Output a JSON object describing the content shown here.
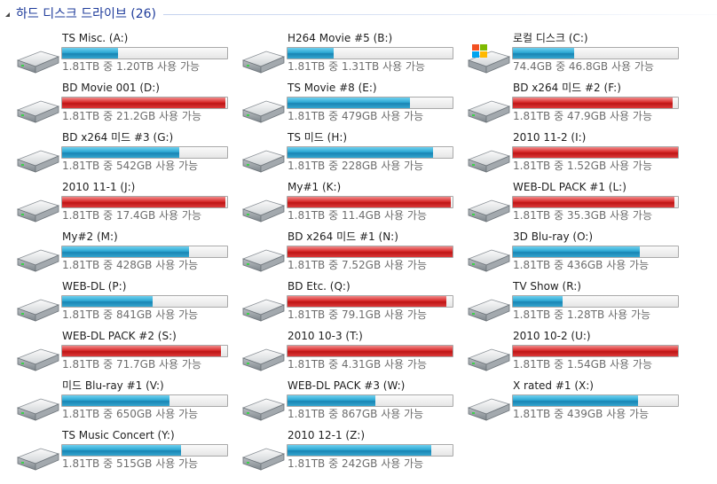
{
  "group": {
    "title": "하드 디스크 드라이브 (26)"
  },
  "drives": [
    {
      "name": "TS Misc. (A:)",
      "space": "1.81TB 중 1.20TB 사용 가능",
      "used": 0.34,
      "status": "normal",
      "icon": "hard-drive-icon"
    },
    {
      "name": "H264 Movie #5 (B:)",
      "space": "1.81TB 중 1.31TB 사용 가능",
      "used": 0.28,
      "status": "normal",
      "icon": "hard-drive-icon"
    },
    {
      "name": "로컬 디스크 (C:)",
      "space": "74.4GB 중 46.8GB 사용 가능",
      "used": 0.37,
      "status": "normal",
      "icon": "windows-system-drive-icon"
    },
    {
      "name": "BD Movie 001 (D:)",
      "space": "1.81TB 중 21.2GB 사용 가능",
      "used": 0.99,
      "status": "full",
      "icon": "hard-drive-icon"
    },
    {
      "name": "TS Movie #8 (E:)",
      "space": "1.81TB 중 479GB 사용 가능",
      "used": 0.74,
      "status": "normal",
      "icon": "hard-drive-icon"
    },
    {
      "name": "BD x264 미드 #2 (F:)",
      "space": "1.81TB 중 47.9GB 사용 가능",
      "used": 0.97,
      "status": "full",
      "icon": "hard-drive-icon"
    },
    {
      "name": "BD x264 미드 #3 (G:)",
      "space": "1.81TB 중 542GB 사용 가능",
      "used": 0.71,
      "status": "normal",
      "icon": "hard-drive-icon"
    },
    {
      "name": "TS 미드 (H:)",
      "space": "1.81TB 중 228GB 사용 가능",
      "used": 0.88,
      "status": "normal",
      "icon": "hard-drive-icon"
    },
    {
      "name": "2010 11-2 (I:)",
      "space": "1.81TB 중 1.52GB 사용 가능",
      "used": 1.0,
      "status": "full",
      "icon": "hard-drive-icon"
    },
    {
      "name": "2010 11-1 (J:)",
      "space": "1.81TB 중 17.4GB 사용 가능",
      "used": 0.99,
      "status": "full",
      "icon": "hard-drive-icon"
    },
    {
      "name": "My#1 (K:)",
      "space": "1.81TB 중 11.4GB 사용 가능",
      "used": 0.99,
      "status": "full",
      "icon": "hard-drive-icon"
    },
    {
      "name": "WEB-DL PACK #1 (L:)",
      "space": "1.81TB 중 35.3GB 사용 가능",
      "used": 0.98,
      "status": "full",
      "icon": "hard-drive-icon"
    },
    {
      "name": "My#2 (M:)",
      "space": "1.81TB 중 428GB 사용 가능",
      "used": 0.77,
      "status": "normal",
      "icon": "hard-drive-icon"
    },
    {
      "name": "BD x264 미드 #1 (N:)",
      "space": "1.81TB 중 7.52GB 사용 가능",
      "used": 1.0,
      "status": "full",
      "icon": "hard-drive-icon"
    },
    {
      "name": "3D Blu-ray (O:)",
      "space": "1.81TB 중 436GB 사용 가능",
      "used": 0.77,
      "status": "normal",
      "icon": "hard-drive-icon"
    },
    {
      "name": "WEB-DL (P:)",
      "space": "1.81TB 중 841GB 사용 가능",
      "used": 0.55,
      "status": "normal",
      "icon": "hard-drive-icon"
    },
    {
      "name": "BD Etc. (Q:)",
      "space": "1.81TB 중 79.1GB 사용 가능",
      "used": 0.96,
      "status": "full",
      "icon": "hard-drive-icon"
    },
    {
      "name": "TV Show (R:)",
      "space": "1.81TB 중 1.28TB 사용 가능",
      "used": 0.3,
      "status": "normal",
      "icon": "hard-drive-icon"
    },
    {
      "name": "WEB-DL PACK #2 (S:)",
      "space": "1.81TB 중 71.7GB 사용 가능",
      "used": 0.96,
      "status": "full",
      "icon": "hard-drive-icon"
    },
    {
      "name": "2010 10-3 (T:)",
      "space": "1.81TB 중 4.31GB 사용 가능",
      "used": 1.0,
      "status": "full",
      "icon": "hard-drive-icon"
    },
    {
      "name": "2010 10-2 (U:)",
      "space": "1.81TB 중 1.54GB 사용 가능",
      "used": 1.0,
      "status": "full",
      "icon": "hard-drive-icon"
    },
    {
      "name": "미드 Blu-ray #1 (V:)",
      "space": "1.81TB 중 650GB 사용 가능",
      "used": 0.65,
      "status": "normal",
      "icon": "hard-drive-icon"
    },
    {
      "name": "WEB-DL PACK #3 (W:)",
      "space": "1.81TB 중 867GB 사용 가능",
      "used": 0.53,
      "status": "normal",
      "icon": "hard-drive-icon"
    },
    {
      "name": "X rated #1 (X:)",
      "space": "1.81TB 중 439GB 사용 가능",
      "used": 0.76,
      "status": "normal",
      "icon": "hard-drive-icon"
    },
    {
      "name": "TS Music Concert (Y:)",
      "space": "1.81TB 중 515GB 사용 가능",
      "used": 0.72,
      "status": "normal",
      "icon": "hard-drive-icon"
    },
    {
      "name": "2010 12-1 (Z:)",
      "space": "1.81TB 중 242GB 사용 가능",
      "used": 0.87,
      "status": "normal",
      "icon": "hard-drive-icon"
    }
  ],
  "colors": {
    "header_text": "#1f3c9b",
    "bar_normal": "#26a0d0",
    "bar_full": "#d42525",
    "space_text": "#6d6d6d"
  }
}
